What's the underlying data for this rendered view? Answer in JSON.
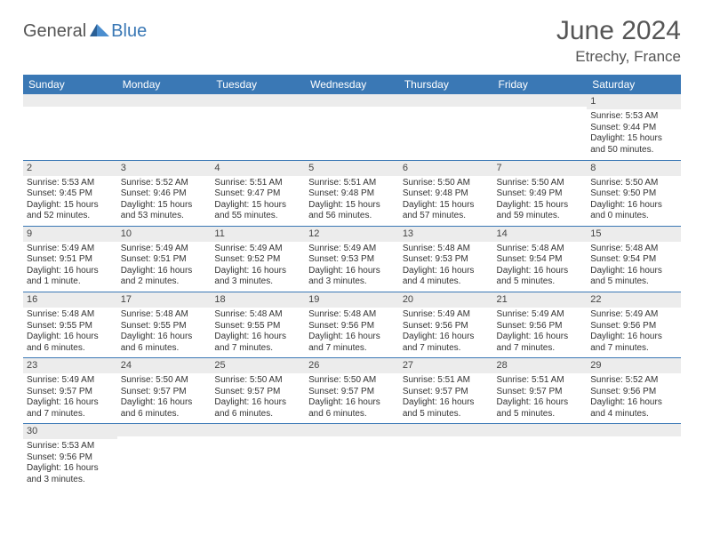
{
  "logo": {
    "general": "General",
    "blue": "Blue"
  },
  "header": {
    "title": "June 2024",
    "location": "Etrechy, France"
  },
  "colors": {
    "accent": "#3a78b5",
    "header_text": "#555",
    "row_stripe": "#ececec"
  },
  "weekdays": [
    "Sunday",
    "Monday",
    "Tuesday",
    "Wednesday",
    "Thursday",
    "Friday",
    "Saturday"
  ],
  "weeks": [
    [
      null,
      null,
      null,
      null,
      null,
      null,
      {
        "n": "1",
        "sr": "Sunrise: 5:53 AM",
        "ss": "Sunset: 9:44 PM",
        "dl": "Daylight: 15 hours and 50 minutes."
      }
    ],
    [
      {
        "n": "2",
        "sr": "Sunrise: 5:53 AM",
        "ss": "Sunset: 9:45 PM",
        "dl": "Daylight: 15 hours and 52 minutes."
      },
      {
        "n": "3",
        "sr": "Sunrise: 5:52 AM",
        "ss": "Sunset: 9:46 PM",
        "dl": "Daylight: 15 hours and 53 minutes."
      },
      {
        "n": "4",
        "sr": "Sunrise: 5:51 AM",
        "ss": "Sunset: 9:47 PM",
        "dl": "Daylight: 15 hours and 55 minutes."
      },
      {
        "n": "5",
        "sr": "Sunrise: 5:51 AM",
        "ss": "Sunset: 9:48 PM",
        "dl": "Daylight: 15 hours and 56 minutes."
      },
      {
        "n": "6",
        "sr": "Sunrise: 5:50 AM",
        "ss": "Sunset: 9:48 PM",
        "dl": "Daylight: 15 hours and 57 minutes."
      },
      {
        "n": "7",
        "sr": "Sunrise: 5:50 AM",
        "ss": "Sunset: 9:49 PM",
        "dl": "Daylight: 15 hours and 59 minutes."
      },
      {
        "n": "8",
        "sr": "Sunrise: 5:50 AM",
        "ss": "Sunset: 9:50 PM",
        "dl": "Daylight: 16 hours and 0 minutes."
      }
    ],
    [
      {
        "n": "9",
        "sr": "Sunrise: 5:49 AM",
        "ss": "Sunset: 9:51 PM",
        "dl": "Daylight: 16 hours and 1 minute."
      },
      {
        "n": "10",
        "sr": "Sunrise: 5:49 AM",
        "ss": "Sunset: 9:51 PM",
        "dl": "Daylight: 16 hours and 2 minutes."
      },
      {
        "n": "11",
        "sr": "Sunrise: 5:49 AM",
        "ss": "Sunset: 9:52 PM",
        "dl": "Daylight: 16 hours and 3 minutes."
      },
      {
        "n": "12",
        "sr": "Sunrise: 5:49 AM",
        "ss": "Sunset: 9:53 PM",
        "dl": "Daylight: 16 hours and 3 minutes."
      },
      {
        "n": "13",
        "sr": "Sunrise: 5:48 AM",
        "ss": "Sunset: 9:53 PM",
        "dl": "Daylight: 16 hours and 4 minutes."
      },
      {
        "n": "14",
        "sr": "Sunrise: 5:48 AM",
        "ss": "Sunset: 9:54 PM",
        "dl": "Daylight: 16 hours and 5 minutes."
      },
      {
        "n": "15",
        "sr": "Sunrise: 5:48 AM",
        "ss": "Sunset: 9:54 PM",
        "dl": "Daylight: 16 hours and 5 minutes."
      }
    ],
    [
      {
        "n": "16",
        "sr": "Sunrise: 5:48 AM",
        "ss": "Sunset: 9:55 PM",
        "dl": "Daylight: 16 hours and 6 minutes."
      },
      {
        "n": "17",
        "sr": "Sunrise: 5:48 AM",
        "ss": "Sunset: 9:55 PM",
        "dl": "Daylight: 16 hours and 6 minutes."
      },
      {
        "n": "18",
        "sr": "Sunrise: 5:48 AM",
        "ss": "Sunset: 9:55 PM",
        "dl": "Daylight: 16 hours and 7 minutes."
      },
      {
        "n": "19",
        "sr": "Sunrise: 5:48 AM",
        "ss": "Sunset: 9:56 PM",
        "dl": "Daylight: 16 hours and 7 minutes."
      },
      {
        "n": "20",
        "sr": "Sunrise: 5:49 AM",
        "ss": "Sunset: 9:56 PM",
        "dl": "Daylight: 16 hours and 7 minutes."
      },
      {
        "n": "21",
        "sr": "Sunrise: 5:49 AM",
        "ss": "Sunset: 9:56 PM",
        "dl": "Daylight: 16 hours and 7 minutes."
      },
      {
        "n": "22",
        "sr": "Sunrise: 5:49 AM",
        "ss": "Sunset: 9:56 PM",
        "dl": "Daylight: 16 hours and 7 minutes."
      }
    ],
    [
      {
        "n": "23",
        "sr": "Sunrise: 5:49 AM",
        "ss": "Sunset: 9:57 PM",
        "dl": "Daylight: 16 hours and 7 minutes."
      },
      {
        "n": "24",
        "sr": "Sunrise: 5:50 AM",
        "ss": "Sunset: 9:57 PM",
        "dl": "Daylight: 16 hours and 6 minutes."
      },
      {
        "n": "25",
        "sr": "Sunrise: 5:50 AM",
        "ss": "Sunset: 9:57 PM",
        "dl": "Daylight: 16 hours and 6 minutes."
      },
      {
        "n": "26",
        "sr": "Sunrise: 5:50 AM",
        "ss": "Sunset: 9:57 PM",
        "dl": "Daylight: 16 hours and 6 minutes."
      },
      {
        "n": "27",
        "sr": "Sunrise: 5:51 AM",
        "ss": "Sunset: 9:57 PM",
        "dl": "Daylight: 16 hours and 5 minutes."
      },
      {
        "n": "28",
        "sr": "Sunrise: 5:51 AM",
        "ss": "Sunset: 9:57 PM",
        "dl": "Daylight: 16 hours and 5 minutes."
      },
      {
        "n": "29",
        "sr": "Sunrise: 5:52 AM",
        "ss": "Sunset: 9:56 PM",
        "dl": "Daylight: 16 hours and 4 minutes."
      }
    ],
    [
      {
        "n": "30",
        "sr": "Sunrise: 5:53 AM",
        "ss": "Sunset: 9:56 PM",
        "dl": "Daylight: 16 hours and 3 minutes."
      },
      null,
      null,
      null,
      null,
      null,
      null
    ]
  ]
}
